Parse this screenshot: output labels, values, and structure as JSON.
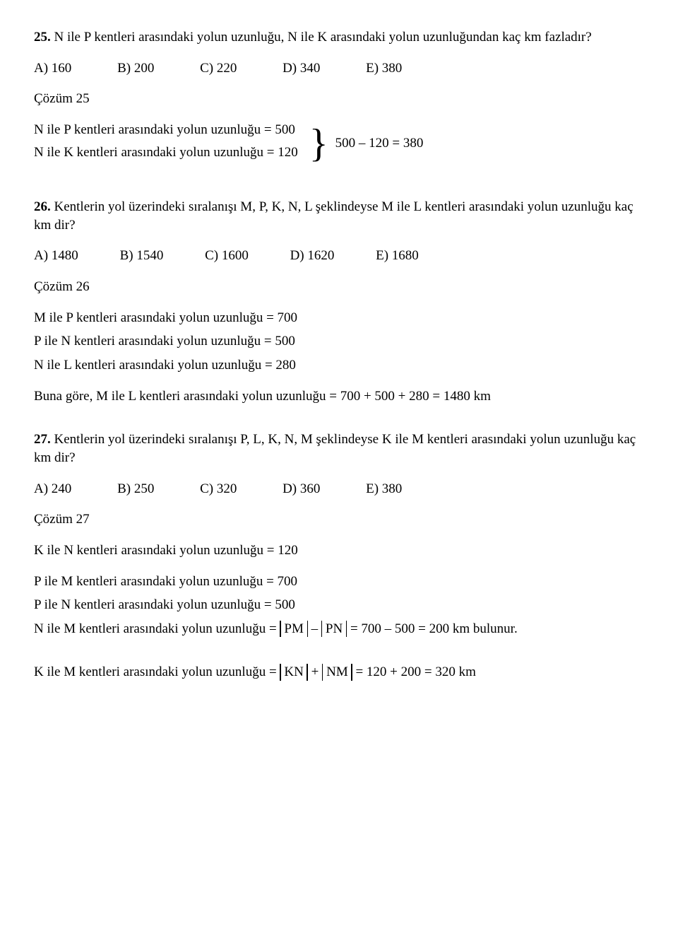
{
  "q25": {
    "num": "25.",
    "text": "N ile P kentleri arasındaki yolun uzunluğu, N ile K arasındaki yolun uzunluğundan kaç km fazladır?",
    "opts": {
      "A": "A) 160",
      "B": "B) 200",
      "C": "C) 220",
      "D": "D) 340",
      "E": "E) 380"
    },
    "coz": "Çözüm 25",
    "line1": "N ile P kentleri arasındaki yolun uzunluğu = 500",
    "line2": "N ile K kentleri arasındaki yolun uzunluğu = 120",
    "diff": "500 – 120 = 380"
  },
  "q26": {
    "num": "26.",
    "text": "Kentlerin yol üzerindeki sıralanışı M, P, K, N, L şeklindeyse M ile L kentleri arasındaki yolun uzunluğu kaç km dir?",
    "opts": {
      "A": "A) 1480",
      "B": "B) 1540",
      "C": "C) 1600",
      "D": "D) 1620",
      "E": "E) 1680"
    },
    "coz": "Çözüm 26",
    "l1": "M ile P kentleri arasındaki yolun uzunluğu = 700",
    "l2": "P ile N kentleri arasındaki yolun uzunluğu = 500",
    "l3": "N ile L kentleri arasındaki yolun uzunluğu = 280",
    "sum": "Buna göre, M ile L kentleri arasındaki yolun uzunluğu = 700 + 500 + 280 = 1480 km"
  },
  "q27": {
    "num": "27.",
    "text": "Kentlerin yol üzerindeki sıralanışı P, L, K, N, M şeklindeyse K ile M kentleri arasındaki yolun uzunluğu kaç km dir?",
    "opts": {
      "A": "A) 240",
      "B": "B) 250",
      "C": "C) 320",
      "D": "D) 360",
      "E": "E) 380"
    },
    "coz": "Çözüm 27",
    "l1": "K ile N kentleri arasındaki yolun uzunluğu = 120",
    "l2": "P ile M kentleri arasındaki yolun uzunluğu = 700",
    "l3": "P ile N kentleri arasındaki yolun uzunluğu = 500",
    "nm_pre": "N ile M kentleri arasındaki yolun uzunluğu = ",
    "pm": "PM",
    "min": " – ",
    "pn": "PN",
    "nm_post": " = 700 – 500 = 200 km bulunur.",
    "km_pre": "K ile M kentleri arasındaki yolun uzunluğu = ",
    "kn": "KN",
    "pl": " + ",
    "nm": "NM",
    "km_post": " = 120 + 200 = 320 km"
  }
}
